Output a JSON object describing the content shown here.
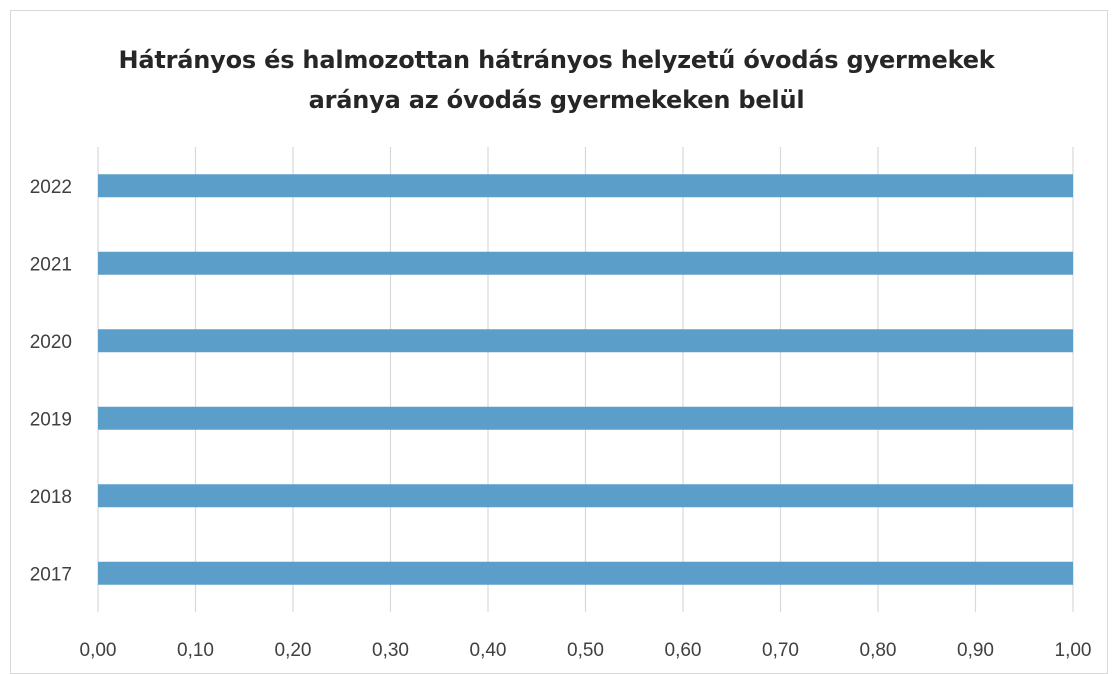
{
  "chart_data": {
    "type": "bar",
    "orientation": "horizontal",
    "title_lines": [
      "Hátrányos és halmozottan hátrányos helyzetű óvodás gyermekek",
      "aránya az óvodás gyermekeken belül"
    ],
    "categories": [
      "2017",
      "2018",
      "2019",
      "2020",
      "2021",
      "2022"
    ],
    "values": [
      1.0,
      1.0,
      1.0,
      1.0,
      1.0,
      1.0
    ],
    "xlabel": "",
    "ylabel": "",
    "xlim": [
      0,
      1
    ],
    "x_ticks": [
      "0,00",
      "0,10",
      "0,20",
      "0,30",
      "0,40",
      "0,50",
      "0,60",
      "0,70",
      "0,80",
      "0,90",
      "1,00"
    ],
    "grid": "vertical",
    "legend": "none",
    "bar_color": "#5b9ec9"
  }
}
